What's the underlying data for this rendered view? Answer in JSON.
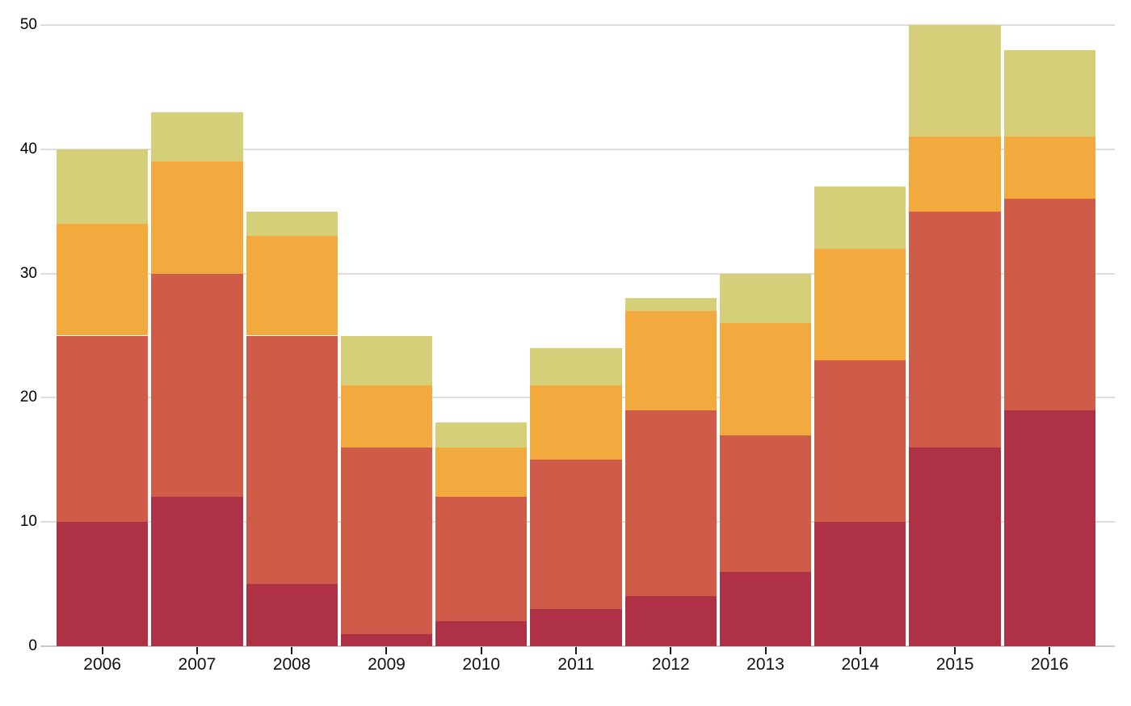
{
  "chart_data": {
    "type": "bar",
    "subtype": "stacked-column",
    "title": "",
    "xlabel": "",
    "ylabel": "",
    "legend_position": "none",
    "grid": true,
    "ylim": [
      0,
      50
    ],
    "y_ticks": [
      0,
      10,
      20,
      30,
      40,
      50
    ],
    "y_tick_labels": [
      "0",
      "10",
      "20",
      "30",
      "40",
      "50"
    ],
    "categories": [
      "2006",
      "2007",
      "2008",
      "2009",
      "2010",
      "2011",
      "2012",
      "2013",
      "2014",
      "2015",
      "2016"
    ],
    "series": [
      {
        "name": "bottom-dark-red",
        "color": "#af3146",
        "values": [
          10,
          12,
          5,
          1,
          2,
          3,
          4,
          6,
          10,
          16,
          19
        ]
      },
      {
        "name": "lower-middle-red",
        "color": "#cf5b49",
        "values": [
          15,
          18,
          20,
          15,
          10,
          12,
          15,
          11,
          13,
          19,
          17
        ]
      },
      {
        "name": "upper-middle-orange",
        "color": "#f2a93d",
        "values": [
          9,
          9,
          8,
          5,
          4,
          6,
          8,
          9,
          9,
          6,
          5
        ]
      },
      {
        "name": "top-yellow-green",
        "color": "#d5cf7a",
        "values": [
          6,
          4,
          2,
          4,
          2,
          3,
          1,
          4,
          5,
          9,
          7
        ]
      }
    ],
    "stack_totals": [
      40,
      43,
      35,
      25,
      18,
      24,
      28,
      30,
      37,
      50,
      48
    ]
  },
  "colors": {
    "background": "#ffffff",
    "gridline": "#dddddd",
    "baseline": "#c9c9c9",
    "tick": "#1a1a1a",
    "label": "#000000"
  }
}
